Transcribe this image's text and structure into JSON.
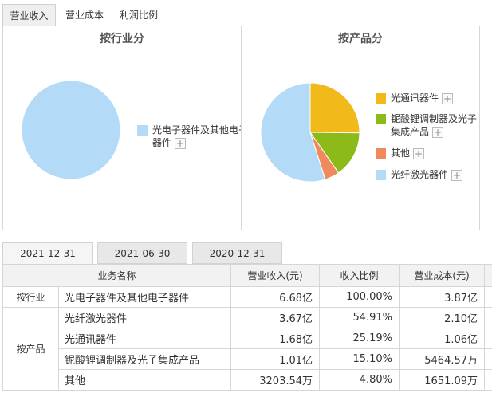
{
  "tabs": [
    "营业收入",
    "营业成本",
    "利润比例"
  ],
  "left_panel": {
    "title": "按行业分",
    "legend": [
      {
        "label": "光电子器件及其他电子器件",
        "color": "#b3dbf7"
      }
    ]
  },
  "right_panel": {
    "title": "按产品分",
    "legend": [
      {
        "label": "光通讯器件",
        "color": "#f2b91b"
      },
      {
        "label": "铌酸锂调制器及光子集成产品",
        "color": "#8cbb19"
      },
      {
        "label": "其他",
        "color": "#f08a5d"
      },
      {
        "label": "光纤激光器件",
        "color": "#b3dbf7"
      }
    ]
  },
  "plus_symbol": "+",
  "date_tabs": [
    "2021-12-31",
    "2021-06-30",
    "2020-12-31"
  ],
  "table": {
    "headers": [
      "业务名称",
      "营业收入(元)",
      "收入比例",
      "营业成本(元)"
    ],
    "groups": [
      {
        "segment": "按行业",
        "rows": [
          {
            "name": "光电子器件及其他电子器件",
            "revenue": "6.68亿",
            "ratio": "100.00%",
            "cost": "3.87亿"
          }
        ]
      },
      {
        "segment": "按产品",
        "rows": [
          {
            "name": "光纤激光器件",
            "revenue": "3.67亿",
            "ratio": "54.91%",
            "cost": "2.10亿"
          },
          {
            "name": "光通讯器件",
            "revenue": "1.68亿",
            "ratio": "25.19%",
            "cost": "1.06亿"
          },
          {
            "name": "铌酸锂调制器及光子集成产品",
            "revenue": "1.01亿",
            "ratio": "15.10%",
            "cost": "5464.57万"
          },
          {
            "name": "其他",
            "revenue": "3203.54万",
            "ratio": "4.80%",
            "cost": "1651.09万"
          }
        ]
      }
    ]
  },
  "chart_data": [
    {
      "type": "pie",
      "title": "按行业分",
      "categories": [
        "光电子器件及其他电子器件"
      ],
      "values": [
        100.0
      ],
      "colors": [
        "#b3dbf7"
      ],
      "legend_placement": "right"
    },
    {
      "type": "pie",
      "title": "按产品分",
      "categories": [
        "光通讯器件",
        "铌酸锂调制器及光子集成产品",
        "其他",
        "光纤激光器件"
      ],
      "values": [
        25.19,
        15.1,
        4.8,
        54.91
      ],
      "colors": [
        "#f2b91b",
        "#8cbb19",
        "#f08a5d",
        "#b3dbf7"
      ],
      "legend_placement": "right"
    }
  ]
}
